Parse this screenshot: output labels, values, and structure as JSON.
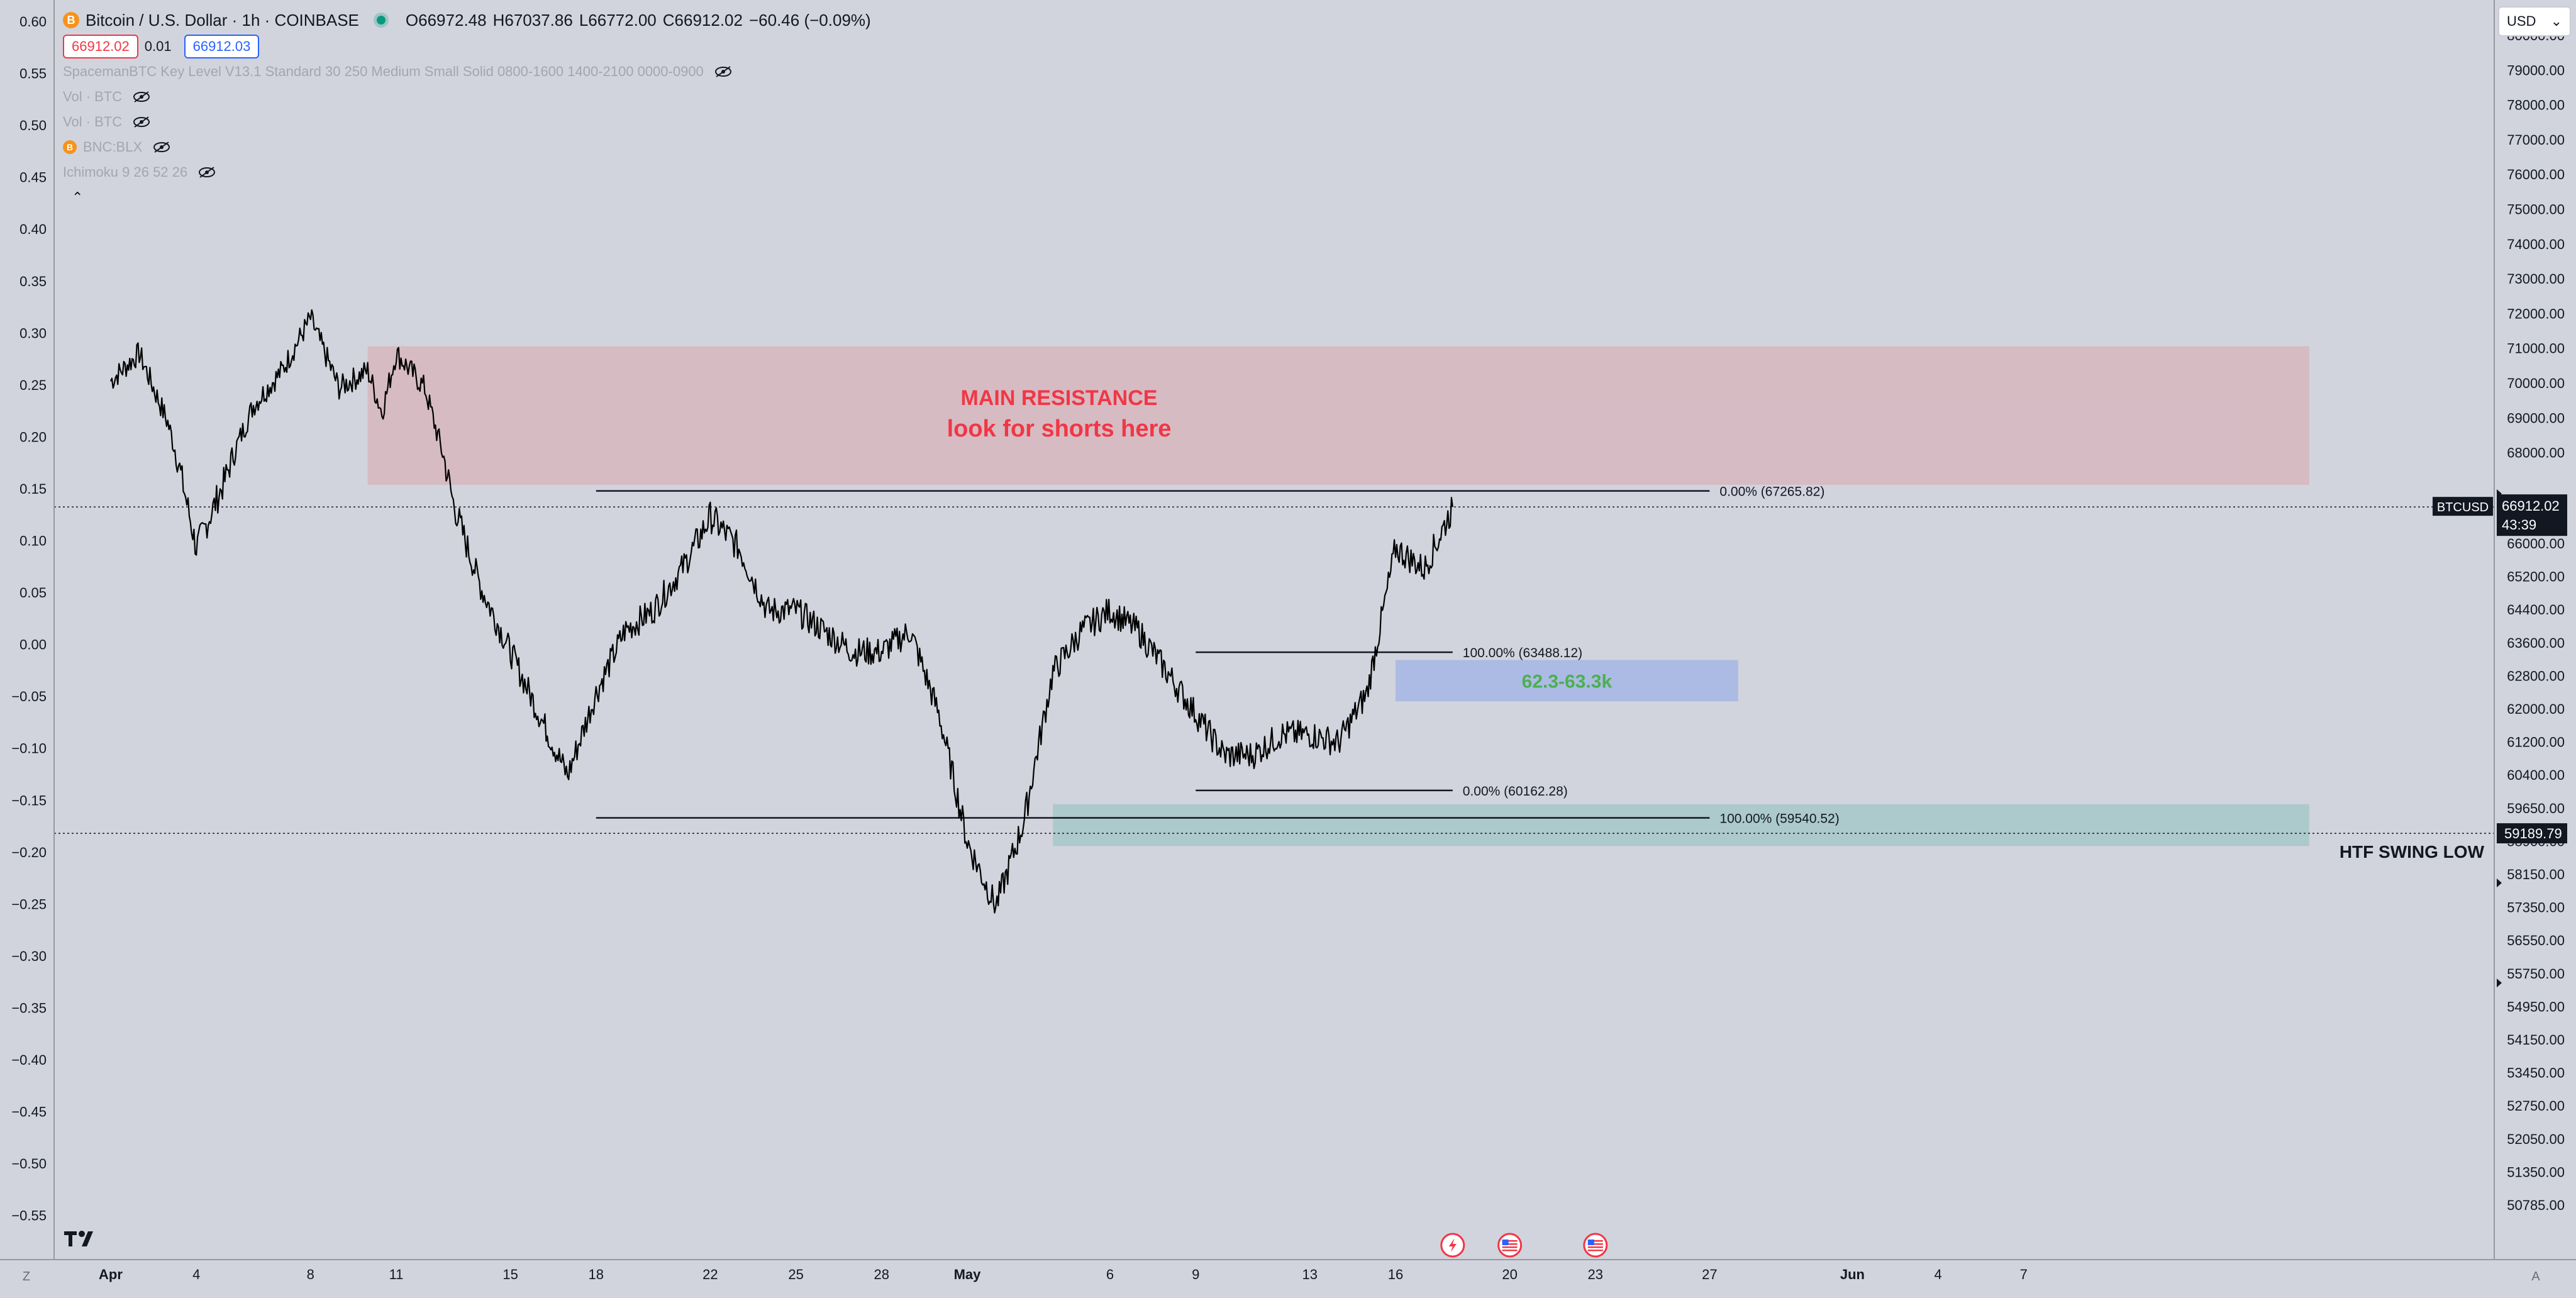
{
  "header": {
    "symbol_title": "Bitcoin / U.S. Dollar · 1h · COINBASE",
    "coin_icon_label": "B",
    "ohlc": [
      {
        "key": "O",
        "value": "66972.48"
      },
      {
        "key": "H",
        "value": "67037.86"
      },
      {
        "key": "L",
        "value": "66772.00"
      },
      {
        "key": "C",
        "value": "66912.02"
      },
      {
        "key": "",
        "value": "−60.46 (−0.09%)"
      }
    ],
    "sell_price": "66912.02",
    "spread": "0.01",
    "buy_price": "66912.03"
  },
  "indicators": [
    "SpacemanBTC Key Level V13.1 Standard 30 250 Medium Small Solid 0800-1600 1400-2100 0000-0900",
    "Vol · BTC",
    "Vol · BTC",
    "BNC:BLX",
    "Ichimoku 9 26 52 26"
  ],
  "currency_button": {
    "label": "USD",
    "icon": "chevron-down-icon"
  },
  "left_axis": {
    "ticks": [
      "0.60",
      "0.55",
      "0.50",
      "0.45",
      "0.40",
      "0.35",
      "0.30",
      "0.25",
      "0.20",
      "0.15",
      "0.10",
      "0.05",
      "0.00",
      "−0.05",
      "−0.10",
      "−0.15",
      "−0.20",
      "−0.25",
      "−0.30",
      "−0.35",
      "−0.40",
      "−0.45",
      "−0.50",
      "−0.55"
    ]
  },
  "right_axis": {
    "ticks": [
      {
        "label": "80000.00",
        "value": 80000
      },
      {
        "label": "79000.00",
        "value": 79000
      },
      {
        "label": "78000.00",
        "value": 78000
      },
      {
        "label": "77000.00",
        "value": 77000
      },
      {
        "label": "76000.00",
        "value": 76000
      },
      {
        "label": "75000.00",
        "value": 75000
      },
      {
        "label": "74000.00",
        "value": 74000
      },
      {
        "label": "73000.00",
        "value": 73000
      },
      {
        "label": "72000.00",
        "value": 72000
      },
      {
        "label": "71000.00",
        "value": 71000
      },
      {
        "label": "70000.00",
        "value": 70000
      },
      {
        "label": "69000.00",
        "value": 69000
      },
      {
        "label": "68000.00",
        "value": 68000
      },
      {
        "label": "66000.00",
        "value": 66000
      },
      {
        "label": "65200.00",
        "value": 65200
      },
      {
        "label": "64400.00",
        "value": 64400
      },
      {
        "label": "63600.00",
        "value": 63600
      },
      {
        "label": "62800.00",
        "value": 62800
      },
      {
        "label": "62000.00",
        "value": 62000
      },
      {
        "label": "61200.00",
        "value": 61200
      },
      {
        "label": "60400.00",
        "value": 60400
      },
      {
        "label": "59650.00",
        "value": 59650
      },
      {
        "label": "58900.00",
        "value": 58900
      },
      {
        "label": "58150.00",
        "value": 58150
      },
      {
        "label": "57350.00",
        "value": 57350
      },
      {
        "label": "56550.00",
        "value": 56550
      },
      {
        "label": "55750.00",
        "value": 55750
      },
      {
        "label": "54950.00",
        "value": 54950
      },
      {
        "label": "54150.00",
        "value": 54150
      },
      {
        "label": "53450.00",
        "value": 53450
      },
      {
        "label": "52750.00",
        "value": 52750
      },
      {
        "label": "52050.00",
        "value": 52050
      },
      {
        "label": "51350.00",
        "value": 51350
      },
      {
        "label": "50785.00",
        "value": 50785
      }
    ],
    "price_tag": {
      "symbol": "BTCUSD",
      "price": "66912.02",
      "countdown": "43:39",
      "value": 66912.02
    },
    "swing_tag": {
      "price": "59189.79",
      "value": 59189.79
    }
  },
  "x_axis": {
    "ticks": [
      {
        "label": "Apr",
        "day": 1
      },
      {
        "label": "4",
        "day": 4
      },
      {
        "label": "8",
        "day": 8
      },
      {
        "label": "11",
        "day": 11
      },
      {
        "label": "15",
        "day": 15
      },
      {
        "label": "18",
        "day": 18
      },
      {
        "label": "22",
        "day": 22
      },
      {
        "label": "25",
        "day": 25
      },
      {
        "label": "28",
        "day": 28
      },
      {
        "label": "May",
        "day": 31
      },
      {
        "label": "6",
        "day": 36
      },
      {
        "label": "9",
        "day": 39
      },
      {
        "label": "13",
        "day": 43
      },
      {
        "label": "16",
        "day": 46
      },
      {
        "label": "20",
        "day": 50
      },
      {
        "label": "23",
        "day": 53
      },
      {
        "label": "27",
        "day": 57
      },
      {
        "label": "Jun",
        "day": 62
      },
      {
        "label": "4",
        "day": 65
      },
      {
        "label": "7",
        "day": 68
      }
    ]
  },
  "annotations": {
    "resistance_title": "MAIN RESISTANCE",
    "resistance_subtitle": "look for shorts here",
    "target_zone_label": "62.3-63.3k",
    "swing_low_label": "HTF SWING LOW",
    "fib_big_top": "0.00% (67265.82)",
    "fib_big_bottom": "100.00% (59540.52)",
    "fib_small_top": "100.00% (63488.12)",
    "fib_small_bottom": "0.00% (60162.28)"
  },
  "bottom_bar": {
    "left_button": "Z",
    "right_button": "A"
  },
  "chart_data": {
    "type": "candlestick",
    "title": "Bitcoin / U.S. Dollar · 1h · COINBASE",
    "x_unit": "day index (Apr 1 = 1, May 1 = 31)",
    "series": [
      {
        "name": "BTCUSD",
        "x": [
          1,
          2,
          3,
          4,
          5,
          6,
          7,
          8,
          8.5,
          9,
          10,
          10.5,
          11,
          12,
          13,
          14,
          15,
          16,
          17,
          18,
          19,
          20,
          21,
          22,
          23,
          24,
          25,
          26,
          27,
          28,
          29,
          30,
          31,
          32,
          33,
          34,
          35,
          36,
          37,
          38,
          39,
          40,
          41,
          42,
          43,
          44,
          45,
          46,
          47,
          48
        ],
        "y": [
          70200,
          71000,
          69000,
          66000,
          67500,
          69500,
          70500,
          72000,
          71000,
          70000,
          70500,
          69300,
          71000,
          70000,
          67000,
          65000,
          63500,
          62000,
          60500,
          62500,
          64000,
          64500,
          65500,
          66700,
          66000,
          64500,
          64500,
          64000,
          63500,
          63500,
          64000,
          62000,
          59000,
          57500,
          59500,
          63000,
          64000,
          64500,
          64000,
          63000,
          62000,
          61000,
          61000,
          61500,
          61500,
          61300,
          62500,
          66000,
          65500,
          66912
        ]
      }
    ],
    "zones": [
      {
        "name": "MAIN RESISTANCE",
        "from_day": 10,
        "to_day": 78,
        "low": 67400,
        "high": 71200
      },
      {
        "name": "62.3-63.3k",
        "from_day": 46,
        "to_day": 58,
        "low": 62300,
        "high": 63300
      },
      {
        "name": "HTF SWING LOW",
        "from_day": 34,
        "to_day": 78,
        "low": 58900,
        "high": 59850
      }
    ],
    "fib_levels": [
      {
        "label": "0.00% (67265.82)",
        "value": 67265.82,
        "from_day": 18,
        "to_day": 57
      },
      {
        "label": "100.00% (59540.52)",
        "value": 59540.52,
        "from_day": 18,
        "to_day": 57
      },
      {
        "label": "100.00% (63488.12)",
        "value": 63488.12,
        "from_day": 39,
        "to_day": 48
      },
      {
        "label": "0.00% (60162.28)",
        "value": 60162.28,
        "from_day": 39,
        "to_day": 48
      }
    ],
    "horizontal_lines": [
      {
        "name": "last price",
        "value": 66912.02
      },
      {
        "name": "swing low",
        "value": 59189.79
      }
    ],
    "event_icons": [
      {
        "name": "flash-icon",
        "day": 48
      },
      {
        "name": "us-flag-icon",
        "day": 50
      },
      {
        "name": "us-flag-icon",
        "day": 53
      }
    ]
  }
}
